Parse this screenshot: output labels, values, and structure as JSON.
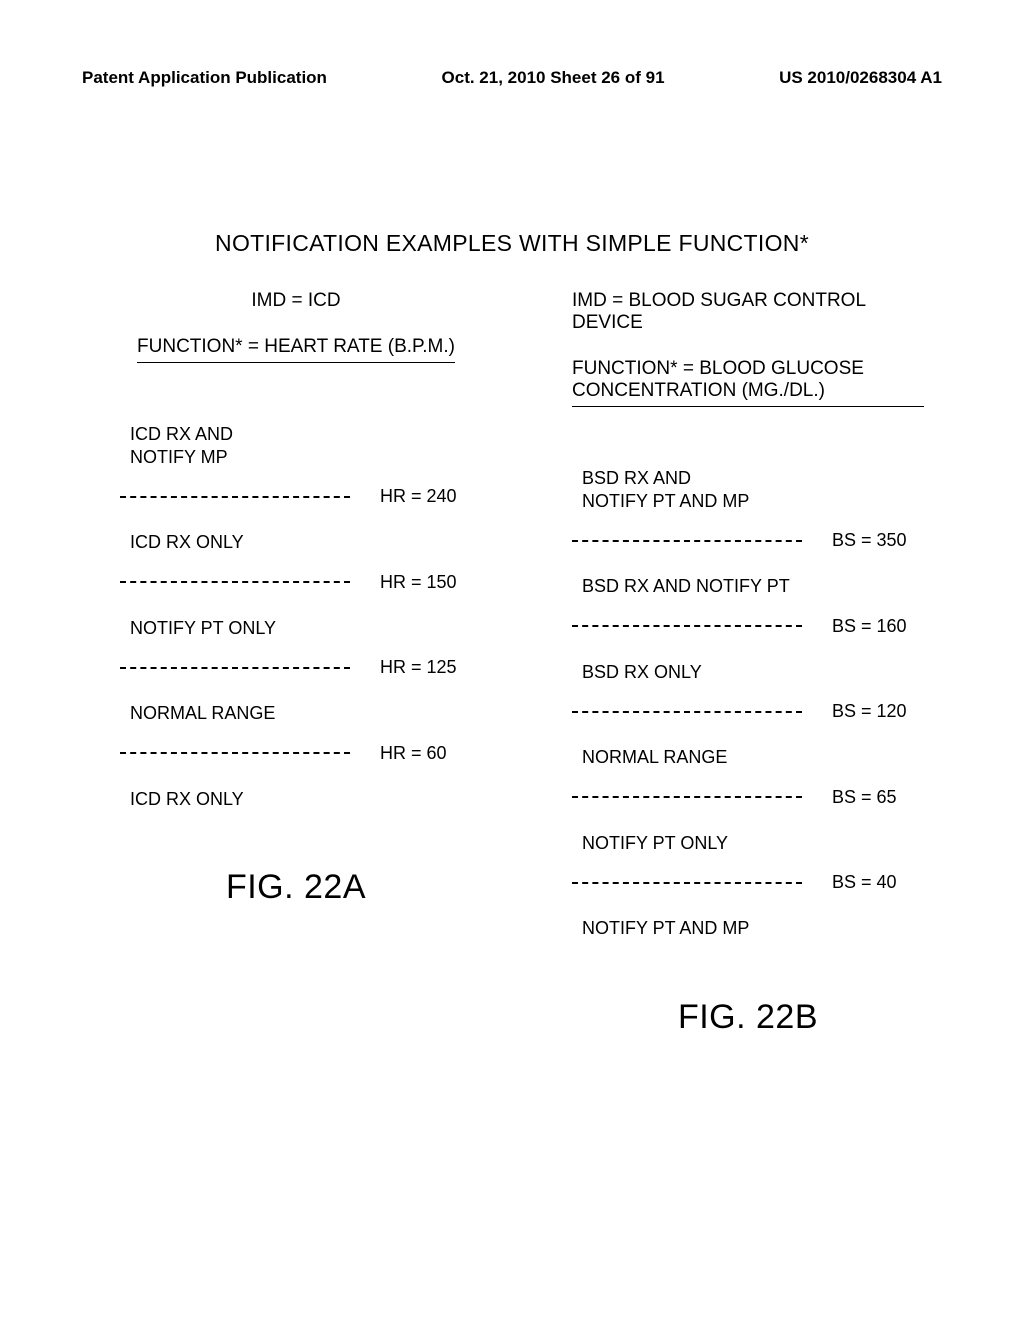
{
  "header": {
    "left": "Patent Application Publication",
    "center": "Oct. 21, 2010  Sheet 26 of 91",
    "right": "US 2010/0268304 A1"
  },
  "main_title": "NOTIFICATION EXAMPLES WITH SIMPLE FUNCTION*",
  "left_col": {
    "imd": "IMD = ICD",
    "function": "FUNCTION* = HEART RATE (B.P.M.)",
    "ranges": [
      {
        "label": "ICD RX AND\nNOTIFY MP",
        "threshold": "HR = 240"
      },
      {
        "label": "ICD RX ONLY",
        "threshold": "HR = 150"
      },
      {
        "label": "NOTIFY PT ONLY",
        "threshold": "HR = 125"
      },
      {
        "label": "NORMAL RANGE",
        "threshold": "HR =  60"
      },
      {
        "label": "ICD RX ONLY",
        "threshold": null
      }
    ],
    "fig": "FIG. 22A"
  },
  "right_col": {
    "imd": "IMD = BLOOD SUGAR CONTROL DEVICE",
    "function": "FUNCTION* = BLOOD GLUCOSE CONCENTRATION (MG./DL.)",
    "ranges": [
      {
        "label": "BSD RX AND\nNOTIFY PT AND MP",
        "threshold": "BS = 350"
      },
      {
        "label": "BSD RX AND NOTIFY PT",
        "threshold": "BS = 160"
      },
      {
        "label": "BSD RX ONLY",
        "threshold": "BS = 120"
      },
      {
        "label": "NORMAL RANGE",
        "threshold": "BS = 65"
      },
      {
        "label": "NOTIFY PT ONLY",
        "threshold": "BS = 40"
      },
      {
        "label": "NOTIFY PT AND MP",
        "threshold": null
      }
    ],
    "fig": "FIG. 22B"
  },
  "colors": {
    "bg": "#ffffff",
    "text": "#000000",
    "dash": "#000000"
  },
  "typography": {
    "header_fontsize": 17,
    "title_fontsize": 23,
    "body_fontsize": 18,
    "fig_fontsize": 34
  }
}
